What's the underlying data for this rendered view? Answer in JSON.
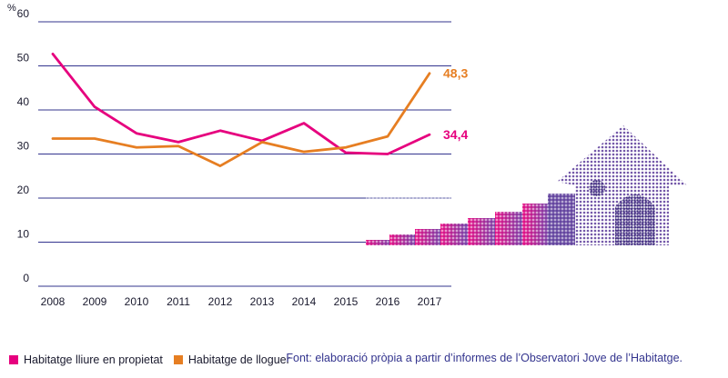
{
  "chart_data": {
    "type": "line",
    "unit_label": "%",
    "x": [
      "2008",
      "2009",
      "2010",
      "2011",
      "2012",
      "2013",
      "2014",
      "2015",
      "2016",
      "2017"
    ],
    "ylim": [
      0,
      60
    ],
    "yticks": [
      0,
      10,
      20,
      30,
      40,
      50,
      60
    ],
    "grid": true,
    "series": [
      {
        "name": "Habitatge lliure en propietat",
        "color": "#e6007e",
        "values": [
          52.7,
          40.7,
          34.7,
          32.7,
          35.3,
          33.0,
          37.0,
          30.3,
          30.0,
          34.4
        ],
        "end_label": "34,4"
      },
      {
        "name": "Habitatge de lloguer",
        "color": "#e67e22",
        "values": [
          33.5,
          33.5,
          31.5,
          31.8,
          27.3,
          32.7,
          30.5,
          31.5,
          34.0,
          48.3
        ],
        "end_label": "48,3"
      }
    ],
    "legend_position": "bottom-left",
    "source": "Font: elaboració pròpia a partir d’informes de l’Observatori Jove de l’Habitatge."
  },
  "colors": {
    "grid": "#33348e",
    "axis_text": "#1a1a2e",
    "house_dots": "#5b3a9a"
  }
}
